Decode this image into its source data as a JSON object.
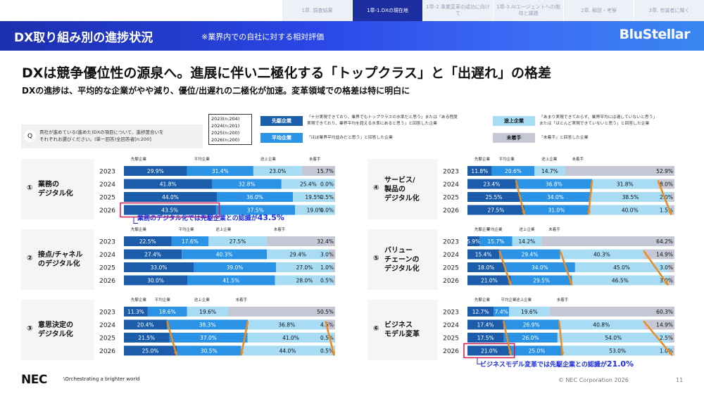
{
  "tabs": [
    "1章. 調査結果",
    "1章-1.DXの現在地",
    "1章-2.事業変革の成功に向けて",
    "1章-3.AIエージェントへの期待と課題",
    "2章. 解説・考察",
    "3章. 有識者に聞く"
  ],
  "active_tab_index": 1,
  "header": {
    "title": "DX取り組み別の進捗状況",
    "subtitle": "※業界内での自社に対する相対評価",
    "brand": "BluStellar"
  },
  "headline": "DXは競争優位性の源泉へ。進展に伴い二極化する「トップクラス」と「出遅れ」の格差",
  "subheadline": "DXの進捗は、平均的な企業がやや減り、優位/出遅れの二極化が加速。変革領域での格差は特に明白に",
  "question": {
    "mark": "Q",
    "text_line1": "貴社が進めている(進めた)DXの項目について、進捗度合いを",
    "text_line2": "それぞれお選びください。(単一回答)全回答者[n:200]"
  },
  "sample_sizes": [
    "2023(n:204)",
    "2024(n:201)",
    "2025(n:200)",
    "2026(n:200)"
  ],
  "legend": [
    {
      "label": "先駆企業",
      "color": "#1b5dab",
      "text_color": "#ffffff",
      "desc": [
        "「十分実現できており、業界でもトップクラスの水準だと思う」または「ある程度",
        "実現できており、業界平均を超える水準にあると思う」と回答した企業"
      ]
    },
    {
      "label": "平均企業",
      "color": "#2a93e6",
      "text_color": "#ffffff",
      "desc": [
        "「ほぼ業界平均並みだと思う」と回答した企業"
      ]
    },
    {
      "label": "途上企業",
      "color": "#a8dcf5",
      "text_color": "#111111",
      "desc": [
        "「あまり実現できておらず、業界平均には達していないと思う」",
        "または「ほとんど実現できていないと思う」と回答した企業"
      ]
    },
    {
      "label": "未着手",
      "color": "#c5c8d4",
      "text_color": "#111111",
      "desc": [
        "「未着手」と回答した企業"
      ]
    }
  ],
  "colors": {
    "highlight": "#d6184f",
    "arrow": "#f08a1c",
    "note": "#1d2fe0"
  },
  "chart_data": [
    {
      "type": "bar",
      "id": 1,
      "number": "①",
      "title": [
        "業務の",
        "デジタル化"
      ],
      "categories": [
        "2023",
        "2024",
        "2025",
        "2026"
      ],
      "segment_names": [
        "先駆企業",
        "平均企業",
        "途上企業",
        "未着手"
      ],
      "values": [
        [
          29.9,
          31.4,
          23.0,
          15.7
        ],
        [
          41.8,
          32.8,
          25.4,
          0.0
        ],
        [
          44.0,
          36.0,
          19.5,
          0.5
        ],
        [
          43.5,
          37.5,
          19.0,
          0.0
        ]
      ],
      "labels": [
        [
          "29.9%",
          "31.4%",
          "23.0%",
          "15.7%"
        ],
        [
          "41.8%",
          "32.8%",
          "25.4%",
          "0.0%"
        ],
        [
          "44.0%",
          "36.0%",
          "19.5%",
          "0.5%"
        ],
        [
          "43.5%",
          "37.5%",
          "19.0%",
          "0.0%"
        ]
      ],
      "highlight_row": 3,
      "arrows": false,
      "note": {
        "prefix": "業務のデジタル化では先駆企業との認識が",
        "value": "43.5%"
      }
    },
    {
      "type": "bar",
      "id": 2,
      "number": "②",
      "title": [
        "接点/チャネル",
        "のデジタル化"
      ],
      "categories": [
        "2023",
        "2024",
        "2025",
        "2026"
      ],
      "segment_names": [
        "先駆企業",
        "平均企業",
        "途上企業",
        "未着手"
      ],
      "values": [
        [
          22.5,
          17.6,
          27.5,
          32.4
        ],
        [
          27.4,
          40.3,
          29.4,
          3.0
        ],
        [
          33.0,
          39.0,
          27.0,
          1.0
        ],
        [
          30.0,
          41.5,
          28.0,
          0.5
        ]
      ],
      "labels": [
        [
          "22.5%",
          "17.6%",
          "27.5%",
          "32.4%"
        ],
        [
          "27.4%",
          "40.3%",
          "29.4%",
          "3.0%"
        ],
        [
          "33.0%",
          "39.0%",
          "27.0%",
          "1.0%"
        ],
        [
          "30.0%",
          "41.5%",
          "28.0%",
          "0.5%"
        ]
      ],
      "highlight_row": null,
      "arrows": false,
      "note": null
    },
    {
      "type": "bar",
      "id": 3,
      "number": "③",
      "title": [
        "意思決定の",
        "デジタル化"
      ],
      "categories": [
        "2023",
        "2024",
        "2025",
        "2026"
      ],
      "segment_names": [
        "先駆企業",
        "平均企業",
        "途上企業",
        "未着手"
      ],
      "values": [
        [
          11.3,
          18.6,
          19.6,
          50.5
        ],
        [
          20.4,
          38.3,
          36.8,
          4.5
        ],
        [
          21.5,
          37.0,
          41.0,
          0.5
        ],
        [
          25.0,
          30.5,
          44.0,
          0.5
        ]
      ],
      "labels": [
        [
          "11.3%",
          "18.6%",
          "19.6%",
          "50.5%"
        ],
        [
          "20.4%",
          "38.3%",
          "36.8%",
          "4.5%"
        ],
        [
          "21.5%",
          "37.0%",
          "41.0%",
          "0.5%"
        ],
        [
          "25.0%",
          "30.5%",
          "44.0%",
          "0.5%"
        ]
      ],
      "highlight_row": null,
      "arrows": true,
      "note": null
    },
    {
      "type": "bar",
      "id": 4,
      "number": "④",
      "title": [
        "サービス/",
        "製品の",
        "デジタル化"
      ],
      "categories": [
        "2023",
        "2024",
        "2025",
        "2026"
      ],
      "segment_names": [
        "先駆企業",
        "平均企業",
        "途上企業",
        "未着手"
      ],
      "values": [
        [
          11.8,
          20.6,
          14.7,
          52.9
        ],
        [
          23.4,
          36.8,
          31.8,
          8.0
        ],
        [
          25.5,
          34.0,
          38.5,
          2.0
        ],
        [
          27.5,
          31.0,
          40.0,
          1.5
        ]
      ],
      "labels": [
        [
          "11.8%",
          "20.6%",
          "14.7%",
          "52.9%"
        ],
        [
          "23.4%",
          "36.8%",
          "31.8%",
          "8.0%"
        ],
        [
          "25.5%",
          "34.0%",
          "38.5%",
          "2.0%"
        ],
        [
          "27.5%",
          "31.0%",
          "40.0%",
          "1.5%"
        ]
      ],
      "highlight_row": null,
      "arrows": true,
      "note": null
    },
    {
      "type": "bar",
      "id": 5,
      "number": "⑤",
      "title": [
        "バリュー",
        "チェーンの",
        "デジタル化"
      ],
      "categories": [
        "2023",
        "2024",
        "2025",
        "2026"
      ],
      "segment_names": [
        "先駆企業",
        "平均企業",
        "途上企業",
        "未着手"
      ],
      "values": [
        [
          5.9,
          15.7,
          14.2,
          64.2
        ],
        [
          15.4,
          29.4,
          40.3,
          14.9
        ],
        [
          18.0,
          34.0,
          45.0,
          3.0
        ],
        [
          21.0,
          29.5,
          46.5,
          3.0
        ]
      ],
      "labels": [
        [
          "5.9%",
          "15.7%",
          "14.2%",
          "64.2%"
        ],
        [
          "15.4%",
          "29.4%",
          "40.3%",
          "14.9%"
        ],
        [
          "18.0%",
          "34.0%",
          "45.0%",
          "3.0%"
        ],
        [
          "21.0%",
          "29.5%",
          "46.5%",
          "3.0%"
        ]
      ],
      "highlight_row": null,
      "arrows": true,
      "note": null
    },
    {
      "type": "bar",
      "id": 6,
      "number": "⑥",
      "title": [
        "ビジネス",
        "モデル変革"
      ],
      "categories": [
        "2023",
        "2024",
        "2025",
        "2026"
      ],
      "segment_names": [
        "先駆企業",
        "平均企業",
        "途上企業",
        "未着手"
      ],
      "values": [
        [
          12.7,
          7.4,
          19.6,
          60.3
        ],
        [
          17.4,
          26.9,
          40.8,
          14.9
        ],
        [
          17.5,
          26.0,
          54.0,
          2.5
        ],
        [
          21.0,
          25.0,
          53.0,
          1.0
        ]
      ],
      "labels": [
        [
          "12.7%",
          "7.4%",
          "19.6%",
          "60.3%"
        ],
        [
          "17.4%",
          "26.9%",
          "40.8%",
          "14.9%"
        ],
        [
          "17.5%",
          "26.0%",
          "54.0%",
          "2.5%"
        ],
        [
          "21.0%",
          "25.0%",
          "53.0%",
          "1.0%"
        ]
      ],
      "highlight_row": 3,
      "arrows": true,
      "note": {
        "prefix": "ビジネスモデル変革では先駆企業との認識が",
        "value": "21.0%"
      }
    }
  ],
  "footer": {
    "logo": "NEC",
    "tagline": "\\Orchestrating a brighter world",
    "copyright": "© NEC Corporation 2026",
    "page": "11"
  }
}
